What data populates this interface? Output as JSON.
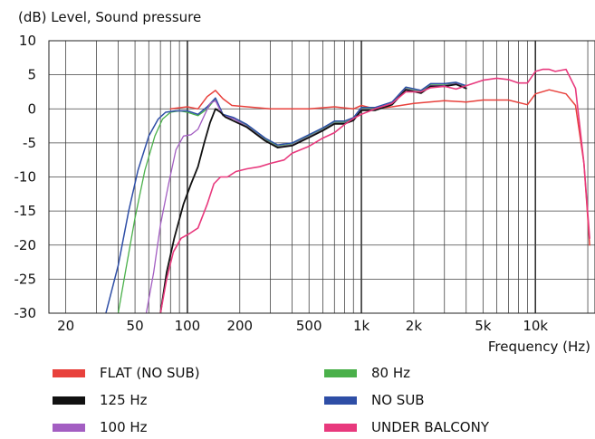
{
  "chart_data": {
    "type": "line",
    "ylabel": "(dB)  Level, Sound pressure",
    "xlabel": "Frequency  (Hz)",
    "xscale": "log",
    "xlim": [
      16,
      22000
    ],
    "ylim": [
      -30,
      10
    ],
    "grid": true,
    "legend_position": "bottom",
    "y_ticks": [
      "10",
      "5",
      "0",
      "-5",
      "-10",
      "-15",
      "-20",
      "-25",
      "-30"
    ],
    "x_ticks": [
      {
        "value": 20,
        "label": "20"
      },
      {
        "value": 50,
        "label": "50"
      },
      {
        "value": 100,
        "label": "100"
      },
      {
        "value": 200,
        "label": "200"
      },
      {
        "value": 500,
        "label": "500"
      },
      {
        "value": 1000,
        "label": "1k"
      },
      {
        "value": 2000,
        "label": "2k"
      },
      {
        "value": 5000,
        "label": "5k"
      },
      {
        "value": 10000,
        "label": "10k"
      }
    ],
    "series": [
      {
        "name": "FLAT (NO SUB)",
        "color": "#e8413c",
        "width": 1.5,
        "points": [
          [
            80,
            0
          ],
          [
            100,
            0.3
          ],
          [
            115,
            0
          ],
          [
            130,
            1.8
          ],
          [
            145,
            2.7
          ],
          [
            160,
            1.5
          ],
          [
            180,
            0.5
          ],
          [
            220,
            0.3
          ],
          [
            300,
            0
          ],
          [
            500,
            0
          ],
          [
            700,
            0.3
          ],
          [
            900,
            0
          ],
          [
            1000,
            0.5
          ],
          [
            1200,
            0
          ],
          [
            1500,
            0.3
          ],
          [
            2000,
            0.8
          ],
          [
            3000,
            1.2
          ],
          [
            4000,
            1.0
          ],
          [
            5000,
            1.3
          ],
          [
            7000,
            1.3
          ],
          [
            9000,
            0.6
          ],
          [
            10000,
            2.2
          ],
          [
            12000,
            2.8
          ],
          [
            15000,
            2.2
          ],
          [
            17000,
            0.5
          ],
          [
            19000,
            -8
          ],
          [
            20500,
            -20
          ]
        ]
      },
      {
        "name": "80 Hz",
        "color": "#4ab04a",
        "width": 1.3,
        "points": [
          [
            40,
            -30
          ],
          [
            44,
            -24
          ],
          [
            50,
            -16
          ],
          [
            57,
            -9
          ],
          [
            65,
            -4
          ],
          [
            72,
            -1.5
          ],
          [
            80,
            -0.5
          ],
          [
            90,
            -0.3
          ],
          [
            100,
            -0.5
          ],
          [
            115,
            -1
          ],
          [
            130,
            0
          ],
          [
            145,
            1.5
          ],
          [
            160,
            -1
          ],
          [
            185,
            -1.5
          ],
          [
            220,
            -2.5
          ],
          [
            280,
            -4.5
          ],
          [
            330,
            -5.5
          ],
          [
            400,
            -5.2
          ],
          [
            500,
            -4
          ],
          [
            600,
            -3
          ],
          [
            700,
            -2
          ],
          [
            800,
            -2
          ],
          [
            900,
            -1.5
          ],
          [
            1000,
            0
          ],
          [
            1200,
            0
          ],
          [
            1500,
            0.8
          ],
          [
            1800,
            3
          ],
          [
            2200,
            2.5
          ],
          [
            2500,
            3.5
          ],
          [
            3000,
            3.5
          ],
          [
            3500,
            3.8
          ],
          [
            4000,
            3.2
          ]
        ]
      },
      {
        "name": "NO SUB",
        "color": "#2e4ea6",
        "width": 1.5,
        "points": [
          [
            34,
            -30
          ],
          [
            40,
            -23
          ],
          [
            46,
            -15
          ],
          [
            52,
            -9
          ],
          [
            60,
            -4
          ],
          [
            68,
            -1.5
          ],
          [
            75,
            -0.5
          ],
          [
            85,
            -0.3
          ],
          [
            100,
            -0.3
          ],
          [
            115,
            -0.8
          ],
          [
            130,
            0.3
          ],
          [
            145,
            1.6
          ],
          [
            160,
            -0.8
          ],
          [
            185,
            -1.3
          ],
          [
            220,
            -2.3
          ],
          [
            280,
            -4.3
          ],
          [
            330,
            -5.3
          ],
          [
            400,
            -5
          ],
          [
            500,
            -3.8
          ],
          [
            600,
            -2.8
          ],
          [
            700,
            -1.8
          ],
          [
            800,
            -1.8
          ],
          [
            900,
            -1.3
          ],
          [
            1000,
            0.2
          ],
          [
            1200,
            0.2
          ],
          [
            1500,
            1
          ],
          [
            1800,
            3.2
          ],
          [
            2200,
            2.7
          ],
          [
            2500,
            3.7
          ],
          [
            3000,
            3.7
          ],
          [
            3500,
            3.9
          ],
          [
            4000,
            3.4
          ]
        ]
      },
      {
        "name": "100 Hz",
        "color": "#a35ec2",
        "width": 1.3,
        "points": [
          [
            58,
            -30
          ],
          [
            64,
            -24
          ],
          [
            70,
            -17
          ],
          [
            78,
            -11
          ],
          [
            86,
            -6
          ],
          [
            95,
            -4
          ],
          [
            105,
            -3.8
          ],
          [
            115,
            -3
          ],
          [
            125,
            -1
          ],
          [
            135,
            0.8
          ],
          [
            145,
            1.2
          ],
          [
            160,
            -1
          ],
          [
            185,
            -1.5
          ],
          [
            220,
            -2.6
          ],
          [
            280,
            -4.6
          ],
          [
            330,
            -5.6
          ],
          [
            400,
            -5.3
          ],
          [
            500,
            -4.1
          ],
          [
            600,
            -3.1
          ],
          [
            700,
            -2.1
          ],
          [
            800,
            -2.1
          ],
          [
            900,
            -1.6
          ],
          [
            1000,
            -0.1
          ],
          [
            1200,
            -0.1
          ],
          [
            1500,
            0.7
          ],
          [
            1800,
            2.9
          ],
          [
            2200,
            2.4
          ],
          [
            2500,
            3.4
          ],
          [
            3000,
            3.4
          ],
          [
            3500,
            3.7
          ],
          [
            4000,
            3.1
          ]
        ]
      },
      {
        "name": "125 Hz",
        "color": "#111111",
        "width": 1.8,
        "points": [
          [
            70,
            -30
          ],
          [
            76,
            -24
          ],
          [
            84,
            -19
          ],
          [
            95,
            -14
          ],
          [
            105,
            -11
          ],
          [
            115,
            -8.5
          ],
          [
            125,
            -5
          ],
          [
            135,
            -2
          ],
          [
            145,
            0
          ],
          [
            155,
            -0.5
          ],
          [
            165,
            -1.2
          ],
          [
            185,
            -1.8
          ],
          [
            220,
            -2.7
          ],
          [
            280,
            -4.7
          ],
          [
            330,
            -5.7
          ],
          [
            400,
            -5.4
          ],
          [
            500,
            -4.2
          ],
          [
            600,
            -3.2
          ],
          [
            700,
            -2.2
          ],
          [
            800,
            -2.2
          ],
          [
            900,
            -1.7
          ],
          [
            1000,
            -0.2
          ],
          [
            1200,
            -0.2
          ],
          [
            1500,
            0.6
          ],
          [
            1800,
            2.8
          ],
          [
            2200,
            2.3
          ],
          [
            2500,
            3.3
          ],
          [
            3000,
            3.3
          ],
          [
            3500,
            3.6
          ],
          [
            4000,
            3.0
          ]
        ]
      },
      {
        "name": "UNDER BALCONY",
        "color": "#e8397d",
        "width": 1.6,
        "points": [
          [
            70,
            -30
          ],
          [
            76,
            -25
          ],
          [
            83,
            -21
          ],
          [
            92,
            -19
          ],
          [
            103,
            -18.3
          ],
          [
            115,
            -17.5
          ],
          [
            130,
            -14
          ],
          [
            142,
            -11
          ],
          [
            155,
            -10
          ],
          [
            170,
            -10
          ],
          [
            190,
            -9.2
          ],
          [
            220,
            -8.8
          ],
          [
            260,
            -8.5
          ],
          [
            300,
            -8
          ],
          [
            360,
            -7.5
          ],
          [
            400,
            -6.5
          ],
          [
            500,
            -5.5
          ],
          [
            600,
            -4.3
          ],
          [
            700,
            -3.5
          ],
          [
            800,
            -2.3
          ],
          [
            900,
            -1.4
          ],
          [
            1000,
            -0.8
          ],
          [
            1200,
            0
          ],
          [
            1500,
            0.8
          ],
          [
            1800,
            2.5
          ],
          [
            2200,
            2.5
          ],
          [
            2500,
            3.1
          ],
          [
            3000,
            3.3
          ],
          [
            3500,
            2.9
          ],
          [
            4000,
            3.4
          ],
          [
            5000,
            4.2
          ],
          [
            6000,
            4.5
          ],
          [
            7000,
            4.3
          ],
          [
            8000,
            3.8
          ],
          [
            9000,
            3.8
          ],
          [
            10000,
            5.5
          ],
          [
            11000,
            5.8
          ],
          [
            12000,
            5.8
          ],
          [
            13000,
            5.5
          ],
          [
            15000,
            5.8
          ],
          [
            17000,
            3
          ],
          [
            19000,
            -8
          ],
          [
            20500,
            -19
          ]
        ]
      }
    ],
    "legend": [
      {
        "label": "FLAT (NO SUB)",
        "color": "#e8413c"
      },
      {
        "label": "125 Hz",
        "color": "#111111"
      },
      {
        "label": "100 Hz",
        "color": "#a35ec2"
      },
      {
        "label": "80 Hz",
        "color": "#4ab04a"
      },
      {
        "label": "NO SUB",
        "color": "#2e4ea6"
      },
      {
        "label": "UNDER BALCONY",
        "color": "#e8397d"
      }
    ]
  }
}
